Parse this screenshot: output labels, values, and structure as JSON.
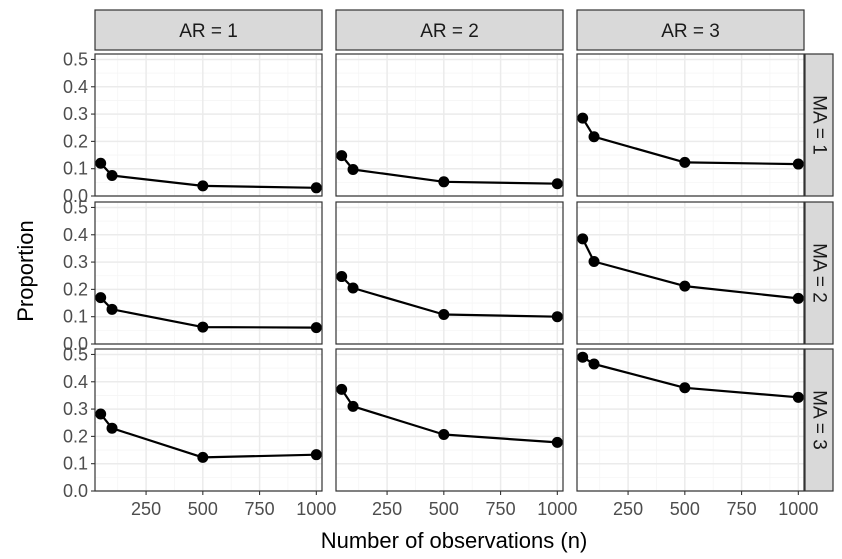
{
  "chart_data": {
    "type": "line",
    "xlabel": "Number of observations (n)",
    "ylabel": "Proportion",
    "x": [
      50,
      100,
      500,
      1000
    ],
    "xlim": [
      25,
      1025
    ],
    "ylim": [
      0,
      0.52
    ],
    "x_ticks": [
      250,
      500,
      750,
      1000
    ],
    "x_tick_labels": [
      "250",
      "500",
      "750",
      "1000"
    ],
    "y_ticks": [
      0,
      0.1,
      0.2,
      0.3,
      0.4,
      0.5
    ],
    "y_tick_labels": [
      "0.0",
      "0.1",
      "0.2",
      "0.3",
      "0.4",
      "0.5"
    ],
    "col_facets": [
      "AR = 1",
      "AR = 2",
      "AR = 3"
    ],
    "row_facets": [
      "MA = 1",
      "MA = 2",
      "MA = 3"
    ],
    "grid": true,
    "panels": [
      [
        {
          "values": [
            0.12,
            0.075,
            0.037,
            0.03
          ]
        },
        {
          "values": [
            0.148,
            0.097,
            0.052,
            0.045
          ]
        },
        {
          "values": [
            0.285,
            0.217,
            0.123,
            0.117
          ]
        }
      ],
      [
        {
          "values": [
            0.17,
            0.127,
            0.062,
            0.06
          ]
        },
        {
          "values": [
            0.247,
            0.205,
            0.108,
            0.1
          ]
        },
        {
          "values": [
            0.385,
            0.302,
            0.212,
            0.167
          ]
        }
      ],
      [
        {
          "values": [
            0.282,
            0.23,
            0.123,
            0.133
          ]
        },
        {
          "values": [
            0.372,
            0.31,
            0.207,
            0.178
          ]
        },
        {
          "values": [
            0.49,
            0.465,
            0.378,
            0.343
          ]
        }
      ]
    ],
    "colors": {
      "line": "#000000",
      "point": "#000000",
      "strip_fill": "#d9d9d9",
      "strip_border": "#333333",
      "panel_border": "#333333",
      "grid_major": "#ebebeb",
      "grid_minor": "#f5f5f5"
    }
  }
}
